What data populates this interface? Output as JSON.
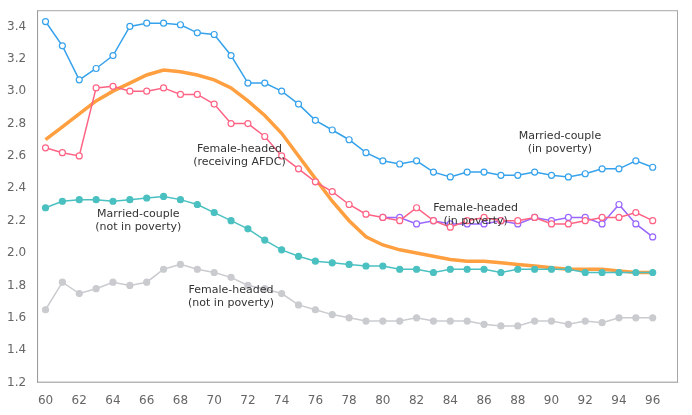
{
  "chart_data": {
    "type": "line",
    "x": [
      60,
      61,
      62,
      63,
      64,
      65,
      66,
      67,
      68,
      69,
      70,
      71,
      72,
      73,
      74,
      75,
      76,
      77,
      78,
      79,
      80,
      81,
      82,
      83,
      84,
      85,
      86,
      87,
      88,
      89,
      90,
      91,
      92,
      93,
      94,
      95,
      96
    ],
    "series": [
      {
        "marker": "circle_open",
        "line_style": "solid",
        "values": [
          3.43,
          3.28,
          3.07,
          3.14,
          3.22,
          3.4,
          3.42,
          3.42,
          3.41,
          3.36,
          3.35,
          3.22,
          3.05,
          3.05,
          3.0,
          2.92,
          2.82,
          2.76,
          2.7,
          2.62,
          2.57,
          2.55,
          2.57,
          2.5,
          2.47,
          2.5,
          2.5,
          2.48,
          2.48,
          2.5,
          2.48,
          2.47,
          2.49,
          2.52,
          2.52,
          2.57,
          2.53
        ]
      },
      {
        "marker": "circle_open",
        "line_style": "solid",
        "values": [
          2.65,
          2.62,
          2.6,
          3.02,
          3.03,
          3.0,
          3.0,
          3.02,
          2.98,
          2.98,
          2.92,
          2.8,
          2.8,
          2.72,
          2.6,
          2.52,
          2.44,
          2.38,
          2.3,
          2.24,
          2.22,
          2.2,
          2.28,
          2.2,
          2.16,
          2.2,
          2.22,
          2.2,
          2.2,
          2.22,
          2.18,
          2.18,
          2.2,
          2.22,
          2.22,
          2.25,
          2.2
        ]
      },
      {
        "marker": "none",
        "line_style": "thick",
        "values": [
          2.7,
          2.78,
          2.86,
          2.94,
          3.0,
          3.05,
          3.1,
          3.13,
          3.12,
          3.1,
          3.07,
          3.02,
          2.94,
          2.85,
          2.74,
          2.6,
          2.46,
          2.32,
          2.2,
          2.1,
          2.05,
          2.02,
          2.0,
          1.98,
          1.96,
          1.95,
          1.95,
          1.94,
          1.93,
          1.92,
          1.91,
          1.9,
          1.9,
          1.9,
          1.89,
          1.88,
          1.88
        ]
      },
      {
        "marker": "circle_open",
        "line_style": "solid",
        "values": [
          null,
          null,
          null,
          null,
          null,
          null,
          null,
          null,
          null,
          null,
          null,
          null,
          null,
          null,
          null,
          null,
          null,
          null,
          null,
          null,
          2.22,
          2.22,
          2.18,
          2.2,
          2.18,
          2.18,
          2.18,
          2.2,
          2.18,
          2.22,
          2.2,
          2.22,
          2.22,
          2.18,
          2.3,
          2.18,
          2.1
        ]
      },
      {
        "marker": "circle",
        "line_style": "solid",
        "values": [
          2.28,
          2.32,
          2.33,
          2.33,
          2.32,
          2.33,
          2.34,
          2.35,
          2.33,
          2.3,
          2.25,
          2.2,
          2.15,
          2.08,
          2.02,
          1.98,
          1.95,
          1.94,
          1.93,
          1.92,
          1.92,
          1.9,
          1.9,
          1.88,
          1.9,
          1.9,
          1.9,
          1.88,
          1.9,
          1.9,
          1.9,
          1.9,
          1.88,
          1.88,
          1.88,
          1.88,
          1.88
        ]
      },
      {
        "marker": "circle",
        "line_style": "solid",
        "values": [
          1.65,
          1.82,
          1.75,
          1.78,
          1.82,
          1.8,
          1.82,
          1.9,
          1.93,
          1.9,
          1.88,
          1.85,
          1.8,
          1.78,
          1.75,
          1.68,
          1.65,
          1.62,
          1.6,
          1.58,
          1.58,
          1.58,
          1.6,
          1.58,
          1.58,
          1.58,
          1.56,
          1.55,
          1.55,
          1.58,
          1.58,
          1.56,
          1.58,
          1.57,
          1.6,
          1.6,
          1.6
        ]
      }
    ],
    "annotations": [
      {
        "text": "Married-couple\n(in poverty)",
        "x": 90.5,
        "y": 2.68
      },
      {
        "text": "Female-headed\n(receiving AFDC)",
        "x": 71.5,
        "y": 2.6
      },
      {
        "text": "Female-headed\n(in poverty)",
        "x": 85.5,
        "y": 2.24
      },
      {
        "text": "Married-couple\n(not in poverty)",
        "x": 65.5,
        "y": 2.2
      },
      {
        "text": "Female-headed\n(not in poverty)",
        "x": 71.0,
        "y": 1.73
      }
    ],
    "xlim": [
      59.5,
      97.5
    ],
    "xticks": [
      60,
      62,
      64,
      66,
      68,
      70,
      72,
      74,
      76,
      78,
      80,
      82,
      84,
      86,
      88,
      90,
      92,
      94,
      96
    ],
    "ylim": [
      1.2,
      3.5
    ],
    "yticks": [
      1.2,
      1.4,
      1.6,
      1.8,
      {
        "value": 2.0,
        "label": "2.0"
      },
      2.2,
      2.4,
      2.6,
      2.8,
      {
        "value": 3.0,
        "label": "3.0"
      },
      3.2,
      3.4
    ],
    "grid": false
  }
}
